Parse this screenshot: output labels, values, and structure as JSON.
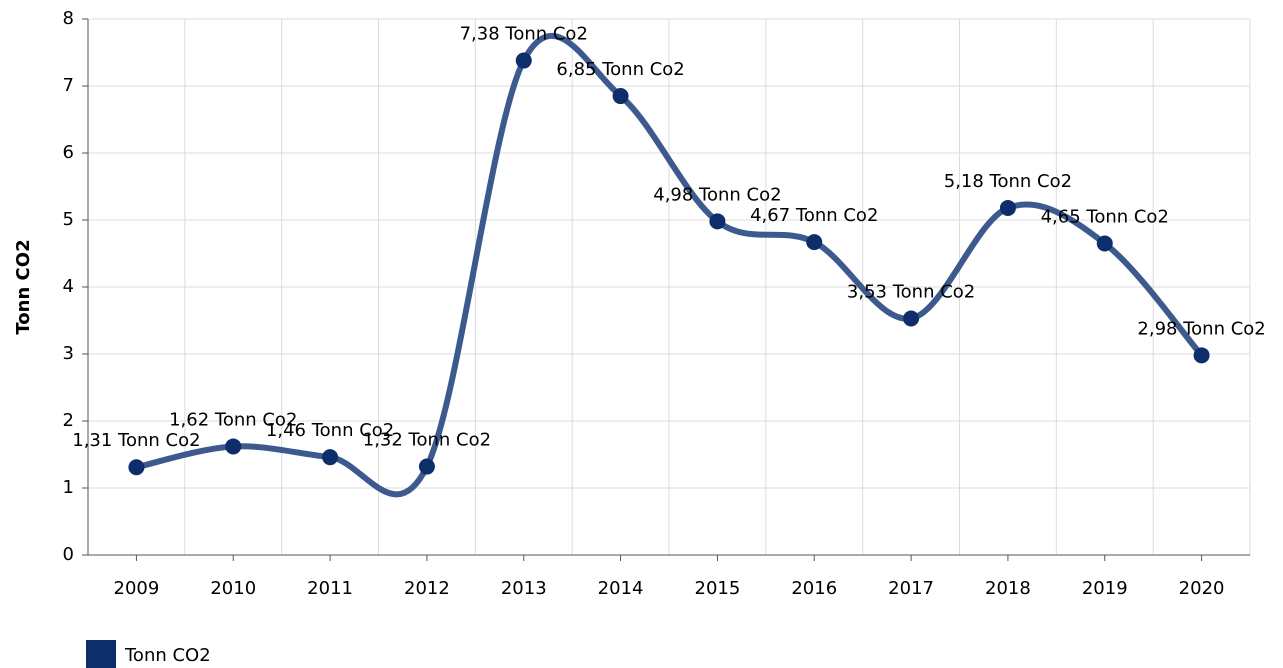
{
  "chart_data": {
    "type": "line",
    "y_label": "Tonn CO2",
    "categories": [
      "2009",
      "2010",
      "2011",
      "2012",
      "2013",
      "2014",
      "2015",
      "2016",
      "2017",
      "2018",
      "2019",
      "2020"
    ],
    "series": [
      {
        "name": "Tonn CO2",
        "color": "#3c5a8e",
        "marker_color": "#0d2d6b",
        "values": [
          1.31,
          1.62,
          1.46,
          1.32,
          7.38,
          6.85,
          4.98,
          4.67,
          3.53,
          5.18,
          4.65,
          2.98
        ],
        "value_labels": [
          "1,31 Tonn Co2",
          "1,62 Tonn Co2",
          "1,46 Tonn Co2",
          "1,32 Tonn Co2",
          "7,38 Tonn Co2",
          "6,85 Tonn Co2",
          "4,98 Tonn Co2",
          "4,67 Tonn Co2",
          "3,53 Tonn Co2",
          "5,18 Tonn Co2",
          "4,65 Tonn Co2",
          "2,98 Tonn Co2"
        ]
      }
    ],
    "ylim": [
      0,
      8
    ],
    "yticks": [
      0,
      1,
      2,
      3,
      4,
      5,
      6,
      7,
      8
    ],
    "grid": true,
    "legend": "bottom-left"
  }
}
